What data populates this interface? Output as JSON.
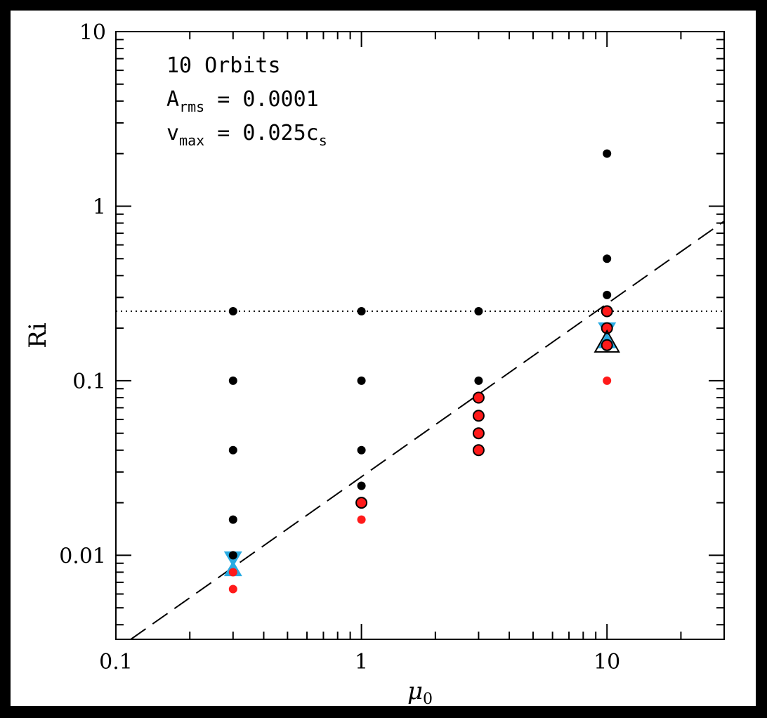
{
  "chart_data": {
    "type": "scatter",
    "xlabel": "μ0",
    "ylabel": "Ri",
    "x_scale": "log",
    "y_scale": "log",
    "xlim": [
      0.1,
      30
    ],
    "ylim": [
      0.0033,
      10
    ],
    "x_ticks": [
      {
        "value": 0.1,
        "label": "0.1"
      },
      {
        "value": 1,
        "label": "1"
      },
      {
        "value": 10,
        "label": "10"
      }
    ],
    "y_ticks": [
      {
        "value": 0.01,
        "label": "0.01"
      },
      {
        "value": 0.1,
        "label": "0.1"
      },
      {
        "value": 1,
        "label": "1"
      },
      {
        "value": 10,
        "label": "10"
      }
    ],
    "annotations": [
      {
        "main": "10 Orbits",
        "sub": "",
        "tail": ""
      },
      {
        "main": "A",
        "sub": "rms",
        "tail": " = 0.0001"
      },
      {
        "main": "v",
        "sub": "max",
        "tail": " = 0.025c",
        "tail_sub": "s"
      }
    ],
    "series": [
      {
        "marker": "black-dot",
        "color": "#000000",
        "points": [
          [
            0.3,
            0.25
          ],
          [
            0.3,
            0.1
          ],
          [
            0.3,
            0.04
          ],
          [
            0.3,
            0.016
          ],
          [
            0.3,
            0.01
          ],
          [
            1,
            0.25
          ],
          [
            1,
            0.1
          ],
          [
            1,
            0.04
          ],
          [
            1,
            0.025
          ],
          [
            3,
            0.25
          ],
          [
            3,
            0.1
          ],
          [
            10,
            2.0
          ],
          [
            10,
            0.5
          ],
          [
            10,
            0.31
          ]
        ]
      },
      {
        "marker": "red-outlined-dot",
        "color": "#ff1a1a",
        "points": [
          [
            1,
            0.02
          ],
          [
            3,
            0.08
          ],
          [
            3,
            0.063
          ],
          [
            3,
            0.05
          ],
          [
            3,
            0.04
          ],
          [
            10,
            0.25
          ],
          [
            10,
            0.2
          ],
          [
            10,
            0.16
          ]
        ]
      },
      {
        "marker": "small-red-dot",
        "color": "#ff1a1a",
        "points": [
          [
            0.3,
            0.0064
          ],
          [
            0.3,
            0.008
          ],
          [
            1,
            0.016
          ],
          [
            10,
            0.1
          ]
        ]
      },
      {
        "marker": "blue-triangle-down",
        "color": "#29abe2",
        "points": [
          [
            0.3,
            0.0095
          ],
          [
            10,
            0.195
          ]
        ]
      },
      {
        "marker": "blue-triangle-up",
        "color": "#29abe2",
        "points": [
          [
            0.3,
            0.0084
          ],
          [
            10,
            0.17
          ]
        ]
      },
      {
        "marker": "outline-triangle-up",
        "color": "#000000",
        "points": [
          [
            10,
            0.165
          ]
        ]
      }
    ],
    "reference_lines": [
      {
        "style": "dotted",
        "kind": "horizontal",
        "y": 0.25
      },
      {
        "style": "dashed",
        "kind": "power-law",
        "x1": 0.115,
        "y1": 0.0033,
        "x2": 30,
        "y2": 0.82
      }
    ],
    "grid": false,
    "legend": "none"
  }
}
